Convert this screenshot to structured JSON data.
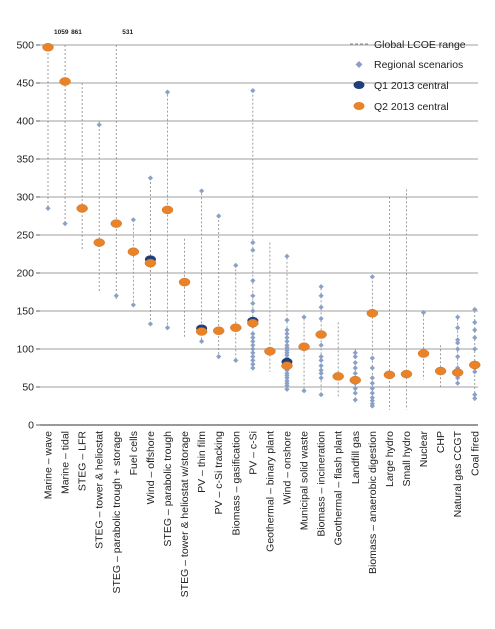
{
  "chart_data": {
    "type": "scatter",
    "ylim": [
      0,
      500
    ],
    "yticks": [
      0,
      50,
      100,
      150,
      200,
      250,
      300,
      350,
      400,
      450,
      500
    ],
    "grid": true,
    "legend_position": "top-right",
    "legend": {
      "range": "Global LCOE range",
      "regional": "Regional scenarios",
      "q1": "Q1 2013 central",
      "q2": "Q2 2013 central"
    },
    "colors": {
      "range": "#888888",
      "regional": "#8aa0c6",
      "q1": "#1f3f7a",
      "q2": "#e8832a",
      "grid": "#7f7f7f",
      "axis": "#333333"
    },
    "categories": [
      "Marine – wave",
      "Marine – tidal",
      "STEG – LFR",
      "STEG – tower & heliostat",
      "STEG – parabolic trough + storage",
      "Fuel cells",
      "Wind – offshore",
      "STEG – parabolic trough",
      "STEG – tower & heliostat w/storage",
      "PV – thin film",
      "PV – c-Si tracking",
      "Biomass – gasification",
      "PV – c-Si",
      "Geothermal – binary plant",
      "Wind – onshore",
      "Municipal solid waste",
      "Biomass – incineration",
      "Geothermal – flash plant",
      "Landfill gas",
      "Biomass – anaerobic digestion",
      "Large hydro",
      "Small hydro",
      "Nuclear",
      "CHP",
      "Natural gas CCGT",
      "Coal fired"
    ],
    "range_low": [
      285,
      265,
      230,
      175,
      165,
      155,
      135,
      125,
      115,
      105,
      90,
      85,
      80,
      70,
      45,
      45,
      40,
      35,
      30,
      25,
      20,
      20,
      60,
      50,
      50,
      30
    ],
    "range_high": [
      500,
      500,
      450,
      400,
      500,
      270,
      325,
      440,
      245,
      310,
      275,
      210,
      440,
      240,
      220,
      140,
      185,
      135,
      100,
      195,
      300,
      310,
      145,
      105,
      145,
      150
    ],
    "q1_central": [
      null,
      null,
      null,
      null,
      null,
      null,
      218,
      null,
      null,
      127,
      null,
      null,
      137,
      null,
      83,
      null,
      null,
      null,
      null,
      null,
      null,
      null,
      null,
      null,
      null,
      null
    ],
    "q2_central": [
      497,
      452,
      285,
      240,
      265,
      228,
      213,
      283,
      188,
      123,
      124,
      128,
      134,
      97,
      78,
      103,
      119,
      64,
      59,
      147,
      66,
      67,
      94,
      71,
      69,
      79
    ],
    "regional": [
      [
        285
      ],
      [
        265
      ],
      [],
      [
        395
      ],
      [
        170
      ],
      [
        158,
        270
      ],
      [
        133,
        325
      ],
      [
        128,
        438
      ],
      [],
      [
        110,
        308
      ],
      [
        90,
        275
      ],
      [
        85,
        210
      ],
      [
        75,
        80,
        85,
        90,
        95,
        100,
        105,
        110,
        115,
        120,
        130,
        140,
        150,
        160,
        170,
        190,
        230,
        240,
        440
      ],
      [],
      [
        47,
        52,
        55,
        58,
        62,
        65,
        68,
        72,
        75,
        78,
        82,
        85,
        88,
        92,
        95,
        98,
        102,
        105,
        110,
        115,
        120,
        125,
        138,
        222
      ],
      [
        45,
        142
      ],
      [
        40,
        62,
        68,
        72,
        78,
        85,
        90,
        105,
        140,
        155,
        170,
        182
      ],
      [],
      [
        33,
        42,
        48,
        55,
        62,
        68,
        75,
        82,
        90,
        95
      ],
      [
        25,
        28,
        32,
        36,
        42,
        48,
        55,
        62,
        75,
        88,
        150,
        195
      ],
      [],
      [],
      [
        148
      ],
      [],
      [
        55,
        62,
        75,
        90,
        100,
        108,
        112,
        128,
        142
      ],
      [
        35,
        40,
        70,
        75,
        82,
        100,
        115,
        125,
        135,
        152
      ]
    ],
    "annotations": [
      {
        "category_index": 0,
        "label": "1059"
      },
      {
        "category_index": 1,
        "label": "861"
      },
      {
        "category_index": 4,
        "label": "531"
      }
    ]
  }
}
